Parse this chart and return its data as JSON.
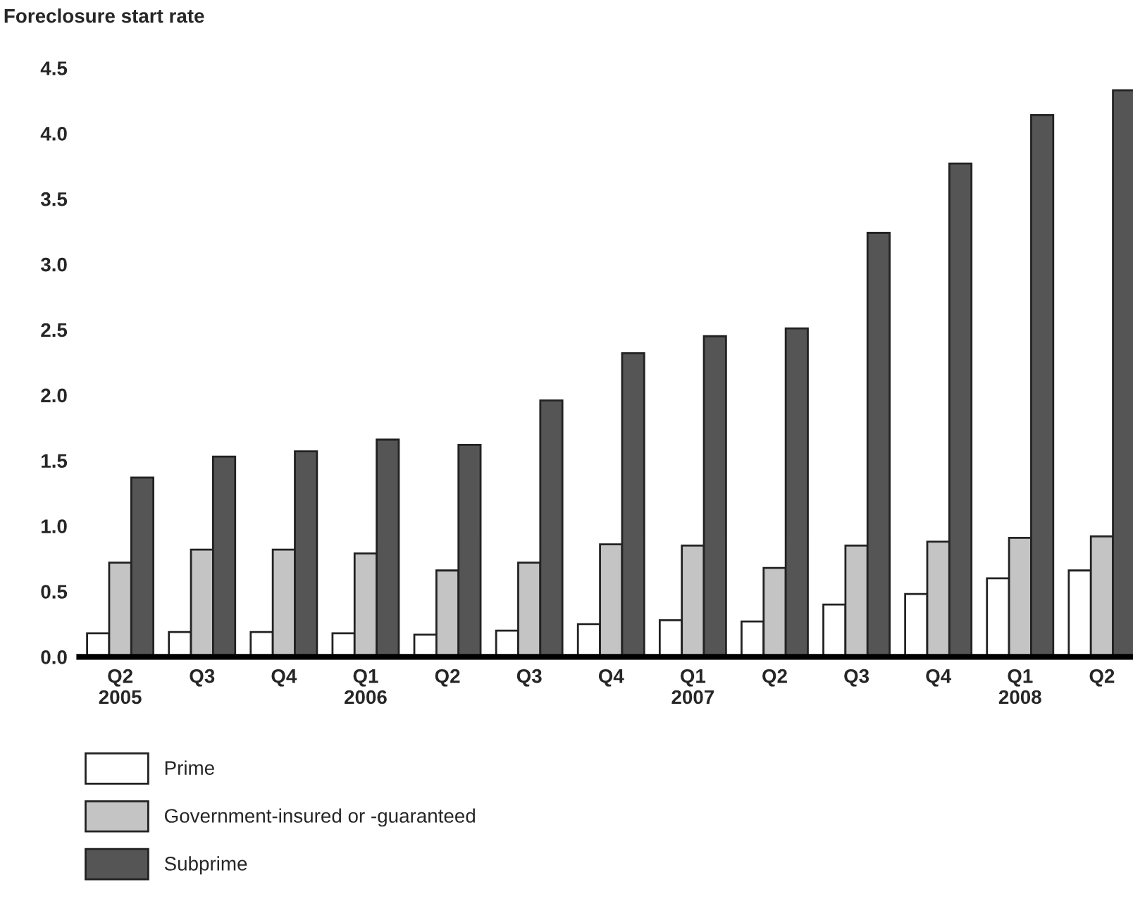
{
  "chart_data": {
    "type": "bar",
    "ylabel": "Foreclosure start rate",
    "categories": [
      "Q2\n2005",
      "Q3",
      "Q4",
      "Q1\n2006",
      "Q2",
      "Q3",
      "Q4",
      "Q1\n2007",
      "Q2",
      "Q3",
      "Q4",
      "Q1\n2008",
      "Q2"
    ],
    "series": [
      {
        "name": "Prime",
        "color": "#ffffff",
        "values": [
          0.18,
          0.19,
          0.19,
          0.18,
          0.17,
          0.2,
          0.25,
          0.28,
          0.27,
          0.4,
          0.48,
          0.6,
          0.66
        ]
      },
      {
        "name": "Government-insured or -guaranteed",
        "color": "#c4c4c4",
        "values": [
          0.72,
          0.82,
          0.82,
          0.79,
          0.66,
          0.72,
          0.86,
          0.85,
          0.68,
          0.85,
          0.88,
          0.91,
          0.92
        ]
      },
      {
        "name": "Subprime",
        "color": "#555555",
        "values": [
          1.37,
          1.53,
          1.57,
          1.66,
          1.62,
          1.96,
          2.32,
          2.45,
          2.51,
          3.24,
          3.77,
          4.14,
          4.33
        ]
      }
    ],
    "ylim": [
      0,
      4.5
    ],
    "yticks": [
      {
        "value": 0,
        "label": "0.0"
      },
      0.5,
      {
        "value": 1,
        "label": "1.0"
      },
      1.5,
      {
        "value": 2,
        "label": "2.0"
      },
      2.5,
      {
        "value": 3,
        "label": "3.0"
      },
      3.5,
      {
        "value": 4,
        "label": "4.0"
      },
      4.5
    ],
    "grid": false,
    "legend": "bottom left"
  }
}
